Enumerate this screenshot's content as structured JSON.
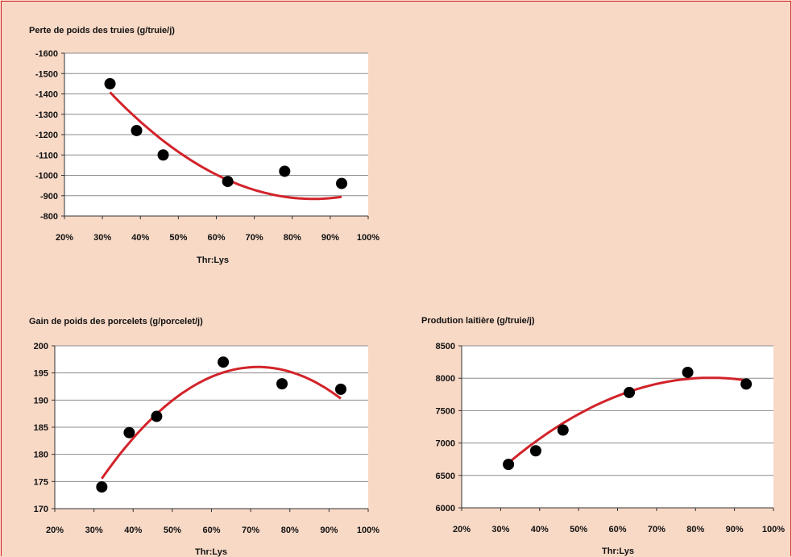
{
  "colors": {
    "background": "#f8d9c6",
    "border": "#d2232a",
    "plot_bg": "#ffffff",
    "grid": "#8c8c8c",
    "fit_line": "#d2232a",
    "points": "#000000"
  },
  "chart_data": [
    {
      "id": "sow-weight-loss",
      "type": "scatter",
      "title": "Perte de poids des truies (g/truie/j)",
      "xlabel": "Thr:Lys",
      "ylabel": "",
      "xlim": [
        0.2,
        1.0
      ],
      "ylim": [
        -800,
        -1600
      ],
      "y_reversed": true,
      "x_ticks": [
        0.2,
        0.3,
        0.4,
        0.5,
        0.6,
        0.7,
        0.8,
        0.9,
        1.0
      ],
      "x_tick_labels": [
        "20%",
        "30%",
        "40%",
        "50%",
        "60%",
        "70%",
        "80%",
        "90%",
        "100%"
      ],
      "y_ticks": [
        -1600,
        -1500,
        -1400,
        -1300,
        -1200,
        -1100,
        -1000,
        -900,
        -800
      ],
      "y_tick_labels": [
        "-1600",
        "-1500",
        "-1400",
        "-1300",
        "-1200",
        "-1100",
        "-1000",
        "-900",
        "-800"
      ],
      "grid": true,
      "points": {
        "x": [
          0.32,
          0.39,
          0.46,
          0.63,
          0.78,
          0.93
        ],
        "y": [
          -1450,
          -1220,
          -1100,
          -970,
          -1020,
          -960
        ]
      },
      "fit": {
        "kind": "quadratic",
        "x_range": [
          0.32,
          0.93
        ],
        "coef": [
          -2221,
          3124,
          -1825
        ]
      }
    },
    {
      "id": "piglet-weight-gain",
      "type": "scatter",
      "title": "Gain de poids des porcelets (g/porcelet/j)",
      "xlabel": "Thr:Lys",
      "ylabel": "",
      "xlim": [
        0.2,
        1.0
      ],
      "ylim": [
        170,
        200
      ],
      "y_reversed": false,
      "x_ticks": [
        0.2,
        0.3,
        0.4,
        0.5,
        0.6,
        0.7,
        0.8,
        0.9,
        1.0
      ],
      "x_tick_labels": [
        "20%",
        "30%",
        "40%",
        "50%",
        "60%",
        "70%",
        "80%",
        "90%",
        "100%"
      ],
      "y_ticks": [
        170,
        175,
        180,
        185,
        190,
        195,
        200
      ],
      "y_tick_labels": [
        "170",
        "175",
        "180",
        "185",
        "190",
        "195",
        "200"
      ],
      "grid": true,
      "points": {
        "x": [
          0.32,
          0.39,
          0.46,
          0.63,
          0.78,
          0.93
        ],
        "y": [
          174,
          184,
          187,
          197,
          193,
          192
        ]
      },
      "fit": {
        "kind": "quadratic",
        "x_range": [
          0.32,
          0.93
        ],
        "coef": [
          129.2,
          186.3,
          -129.7
        ]
      }
    },
    {
      "id": "milk-production",
      "type": "scatter",
      "title": "Prodution laitière (g/truie/j)",
      "xlabel": "Thr:Lys",
      "ylabel": "",
      "xlim": [
        0.2,
        1.0
      ],
      "ylim": [
        6000,
        8500
      ],
      "y_reversed": false,
      "x_ticks": [
        0.2,
        0.3,
        0.4,
        0.5,
        0.6,
        0.7,
        0.8,
        0.9,
        1.0
      ],
      "x_tick_labels": [
        "20%",
        "30%",
        "40%",
        "50%",
        "60%",
        "70%",
        "80%",
        "90%",
        "100%"
      ],
      "y_ticks": [
        6000,
        6500,
        7000,
        7500,
        8000,
        8500
      ],
      "y_tick_labels": [
        "6000",
        "6500",
        "7000",
        "7500",
        "8000",
        "8500"
      ],
      "grid": true,
      "points": {
        "x": [
          0.32,
          0.39,
          0.46,
          0.63,
          0.78,
          0.93
        ],
        "y": [
          6670,
          6880,
          7200,
          7780,
          8090,
          7910
        ]
      },
      "fit": {
        "kind": "quadratic",
        "x_range": [
          0.32,
          0.93
        ],
        "coef": [
          4578,
          8166,
          -4862
        ]
      }
    }
  ]
}
